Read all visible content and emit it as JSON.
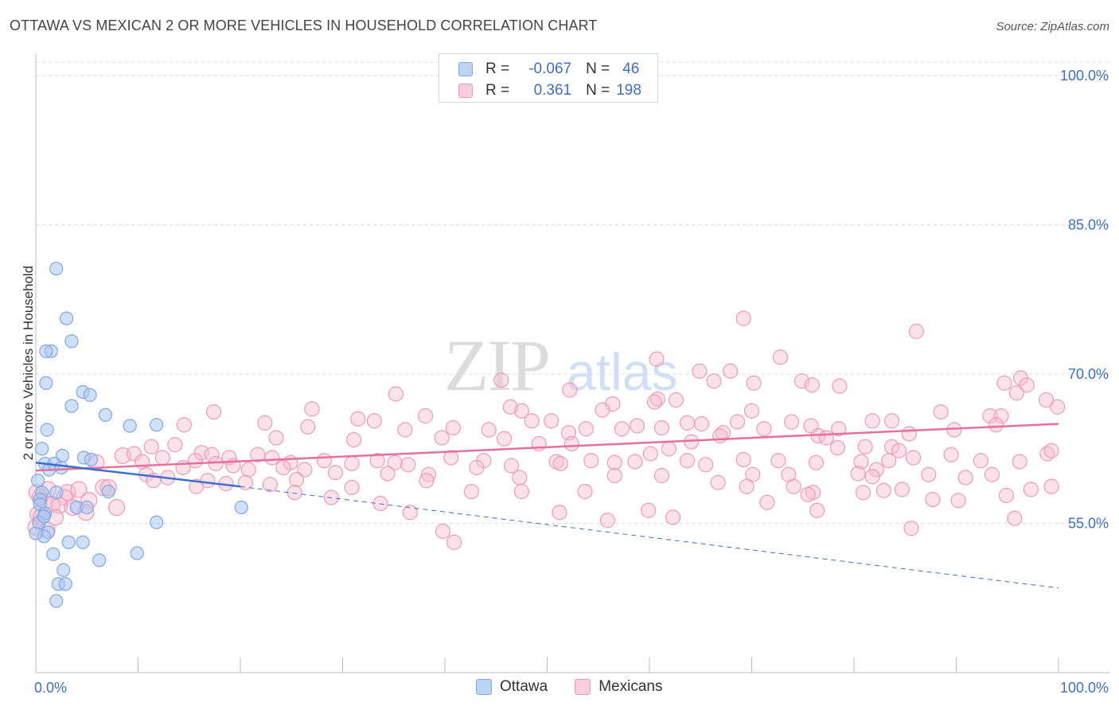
{
  "title": "OTTAWA VS MEXICAN 2 OR MORE VEHICLES IN HOUSEHOLD CORRELATION CHART",
  "source": "Source: ZipAtlas.com",
  "watermark": {
    "part1": "ZIP",
    "part2": "atlas"
  },
  "legend": {
    "rows": [
      {
        "r_label": "R =",
        "r_value": "-0.067",
        "n_label": "N =",
        "n_value": "46"
      },
      {
        "r_label": "R =",
        "r_value": "0.361",
        "n_label": "N =",
        "n_value": "198"
      }
    ]
  },
  "bottom_legend": {
    "ottawa": "Ottawa",
    "mexicans": "Mexicans"
  },
  "colors": {
    "ottawa_fill": "#a9c6f0",
    "ottawa_stroke": "#7ea8e6",
    "ottawa_line": "#3b6fd0",
    "mexican_fill": "#f6bcd0",
    "mexican_stroke": "#ee9ab7",
    "mexican_line": "#e5709b",
    "tick_label": "#3d6fc8",
    "grid": "#d9d9d9"
  },
  "chart_data": {
    "type": "scatter",
    "title": "OTTAWA VS MEXICAN 2 OR MORE VEHICLES IN HOUSEHOLD CORRELATION CHART",
    "xlabel": "",
    "ylabel": "2 or more Vehicles in Household",
    "xlim": [
      0,
      100
    ],
    "ylim": [
      40,
      102
    ],
    "x_tick_labels": [
      "0.0%",
      "100.0%"
    ],
    "y_ticks": [
      55,
      70,
      85,
      100
    ],
    "y_tick_labels": [
      "55.0%",
      "70.0%",
      "85.0%",
      "100.0%"
    ],
    "grid": "horizontal dashed",
    "legend_position": "top-center",
    "series": [
      {
        "name": "Ottawa",
        "r": -0.067,
        "n": 46,
        "trend": {
          "solid": [
            [
              0,
              61.1
            ],
            [
              20,
              58.7
            ]
          ],
          "dashed": [
            [
              20,
              58.7
            ],
            [
              100,
              48.5
            ]
          ]
        },
        "points": [
          [
            2,
            80.6
          ],
          [
            3,
            75.6
          ],
          [
            3.5,
            73.3
          ],
          [
            1.5,
            72.3
          ],
          [
            1,
            72.3
          ],
          [
            1,
            69.1
          ],
          [
            4.6,
            68.2
          ],
          [
            3.5,
            66.8
          ],
          [
            5.3,
            67.9
          ],
          [
            6.8,
            65.9
          ],
          [
            1.1,
            64.4
          ],
          [
            9.2,
            64.8
          ],
          [
            11.8,
            64.9
          ],
          [
            0.6,
            62.5
          ],
          [
            2.6,
            61.8
          ],
          [
            4.7,
            61.6
          ],
          [
            5.4,
            61.4
          ],
          [
            0.9,
            61.0
          ],
          [
            1.8,
            61.0
          ],
          [
            2.5,
            60.6
          ],
          [
            1.3,
            60.4
          ],
          [
            0.2,
            59.3
          ],
          [
            0.6,
            58.1
          ],
          [
            0.4,
            57.4
          ],
          [
            2,
            58.1
          ],
          [
            7.1,
            58.2
          ],
          [
            0.4,
            56.9
          ],
          [
            4,
            56.6
          ],
          [
            5,
            56.6
          ],
          [
            0.9,
            56.0
          ],
          [
            20.1,
            56.6
          ],
          [
            11.8,
            55.1
          ],
          [
            1.2,
            54.1
          ],
          [
            0.8,
            53.7
          ],
          [
            0,
            54.0
          ],
          [
            3.2,
            53.1
          ],
          [
            4.6,
            53.1
          ],
          [
            1.7,
            51.9
          ],
          [
            6.2,
            51.3
          ],
          [
            9.9,
            52.0
          ],
          [
            2.7,
            50.3
          ],
          [
            2.2,
            48.9
          ],
          [
            2.9,
            48.9
          ],
          [
            2,
            47.2
          ],
          [
            0.3,
            55.1
          ],
          [
            0.8,
            55.7
          ]
        ]
      },
      {
        "name": "Mexicans",
        "r": 0.361,
        "n": 198,
        "trend": {
          "solid": [
            [
              0,
              60.3
            ],
            [
              100,
              65.0
            ]
          ]
        },
        "points": [
          [
            69.2,
            75.6
          ],
          [
            86.1,
            74.3
          ],
          [
            60.7,
            71.5
          ],
          [
            72.8,
            71.7
          ],
          [
            64.9,
            70.3
          ],
          [
            67.9,
            70.3
          ],
          [
            45.5,
            69.4
          ],
          [
            66.3,
            69.3
          ],
          [
            70.2,
            69.1
          ],
          [
            74.9,
            69.3
          ],
          [
            75.9,
            68.9
          ],
          [
            78.6,
            68.8
          ],
          [
            94.7,
            69.1
          ],
          [
            96.3,
            69.6
          ],
          [
            96.9,
            68.9
          ],
          [
            99.9,
            66.7
          ],
          [
            95.9,
            68.1
          ],
          [
            52.2,
            68.4
          ],
          [
            35.2,
            68.0
          ],
          [
            60.8,
            67.5
          ],
          [
            60.5,
            67.2
          ],
          [
            56.4,
            67.0
          ],
          [
            62.6,
            67.4
          ],
          [
            98.8,
            67.4
          ],
          [
            27,
            66.5
          ],
          [
            17.4,
            66.2
          ],
          [
            38.1,
            65.8
          ],
          [
            47.5,
            66.3
          ],
          [
            46.4,
            66.7
          ],
          [
            55.4,
            66.4
          ],
          [
            48.5,
            65.3
          ],
          [
            50.4,
            65.3
          ],
          [
            53.8,
            64.5
          ],
          [
            57.3,
            64.5
          ],
          [
            70,
            66.3
          ],
          [
            68.6,
            65.2
          ],
          [
            73.9,
            65.2
          ],
          [
            81.8,
            65.3
          ],
          [
            88.5,
            66.2
          ],
          [
            93.3,
            65.8
          ],
          [
            94.4,
            65.8
          ],
          [
            93.9,
            64.9
          ],
          [
            83.7,
            65.3
          ],
          [
            75.8,
            64.8
          ],
          [
            63.7,
            65.1
          ],
          [
            22.4,
            65.1
          ],
          [
            14.5,
            64.9
          ],
          [
            26.6,
            64.7
          ],
          [
            31.5,
            65.5
          ],
          [
            33.1,
            65.3
          ],
          [
            36.1,
            64.4
          ],
          [
            40.8,
            64.6
          ],
          [
            44.3,
            64.4
          ],
          [
            52.1,
            64.1
          ],
          [
            58.8,
            64.8
          ],
          [
            61.2,
            64.6
          ],
          [
            65.1,
            65.0
          ],
          [
            67.2,
            64.1
          ],
          [
            71.2,
            64.5
          ],
          [
            76.5,
            63.8
          ],
          [
            78.5,
            64.5
          ],
          [
            77.3,
            63.6
          ],
          [
            85.4,
            64.0
          ],
          [
            89.8,
            64.4
          ],
          [
            23.5,
            63.6
          ],
          [
            31.1,
            63.4
          ],
          [
            39.7,
            63.6
          ],
          [
            45.8,
            63.5
          ],
          [
            49.2,
            63.0
          ],
          [
            52.4,
            63.0
          ],
          [
            61.9,
            62.5
          ],
          [
            64.1,
            63.2
          ],
          [
            66.9,
            63.8
          ],
          [
            78.4,
            62.6
          ],
          [
            81.1,
            62.7
          ],
          [
            83.7,
            62.7
          ],
          [
            84.4,
            62.3
          ],
          [
            11.3,
            62.7
          ],
          [
            13.6,
            62.9
          ],
          [
            16.2,
            62.1
          ],
          [
            17.2,
            61.9
          ],
          [
            18.9,
            61.6
          ],
          [
            21.7,
            61.9
          ],
          [
            23.1,
            61.6
          ],
          [
            24.9,
            61.1
          ],
          [
            28.2,
            61.3
          ],
          [
            30.9,
            61.0
          ],
          [
            33.4,
            61.3
          ],
          [
            35.1,
            61.1
          ],
          [
            36.4,
            60.9
          ],
          [
            40.6,
            61.6
          ],
          [
            43.8,
            61.3
          ],
          [
            46.5,
            60.8
          ],
          [
            50.9,
            61.2
          ],
          [
            51.3,
            61.0
          ],
          [
            54.3,
            61.3
          ],
          [
            56.6,
            61.1
          ],
          [
            58.6,
            61.2
          ],
          [
            60.1,
            62.0
          ],
          [
            63.7,
            61.3
          ],
          [
            65.5,
            60.9
          ],
          [
            69.2,
            61.4
          ],
          [
            72.6,
            61.3
          ],
          [
            76.3,
            61.1
          ],
          [
            80.7,
            61.2
          ],
          [
            82.2,
            60.4
          ],
          [
            83.4,
            61.3
          ],
          [
            85.8,
            61.6
          ],
          [
            89.5,
            61.9
          ],
          [
            92.4,
            61.3
          ],
          [
            96.2,
            61.2
          ],
          [
            98.9,
            62.0
          ],
          [
            99.3,
            62.3
          ],
          [
            8.5,
            61.8
          ],
          [
            9.6,
            62.0
          ],
          [
            12.4,
            61.6
          ],
          [
            15.6,
            61.3
          ],
          [
            5.9,
            61.1
          ],
          [
            10.4,
            61.2
          ],
          [
            14.4,
            60.6
          ],
          [
            17.6,
            61.0
          ],
          [
            19.3,
            60.8
          ],
          [
            20.8,
            60.4
          ],
          [
            24.2,
            60.6
          ],
          [
            26.3,
            60.4
          ],
          [
            29.3,
            60.1
          ],
          [
            34.4,
            60.0
          ],
          [
            38.4,
            59.9
          ],
          [
            43.1,
            60.6
          ],
          [
            47.3,
            59.6
          ],
          [
            56.6,
            59.8
          ],
          [
            61.2,
            59.8
          ],
          [
            70.1,
            59.9
          ],
          [
            73.6,
            59.9
          ],
          [
            80.4,
            60.0
          ],
          [
            81.8,
            59.7
          ],
          [
            87.3,
            59.9
          ],
          [
            90.9,
            59.6
          ],
          [
            93.5,
            59.9
          ],
          [
            10.8,
            59.9
          ],
          [
            12.9,
            59.6
          ],
          [
            11.5,
            59.3
          ],
          [
            16.8,
            59.3
          ],
          [
            20.5,
            59.1
          ],
          [
            22.9,
            58.9
          ],
          [
            25.5,
            59.4
          ],
          [
            38.2,
            59.3
          ],
          [
            42.6,
            58.2
          ],
          [
            47.5,
            58.2
          ],
          [
            53.7,
            58.2
          ],
          [
            66.7,
            59.1
          ],
          [
            69.5,
            58.7
          ],
          [
            74.1,
            58.7
          ],
          [
            76,
            58.1
          ],
          [
            80.9,
            58.1
          ],
          [
            84.7,
            58.4
          ],
          [
            97.3,
            58.4
          ],
          [
            99.3,
            58.7
          ],
          [
            15.7,
            58.7
          ],
          [
            18.6,
            59.0
          ],
          [
            6.6,
            58.6
          ],
          [
            3.1,
            58.1
          ],
          [
            4.2,
            58.4
          ],
          [
            5.2,
            57.3
          ],
          [
            7.1,
            58.6
          ],
          [
            1.2,
            58.4
          ],
          [
            2.8,
            57.6
          ],
          [
            0.1,
            58.1
          ],
          [
            0.8,
            57.1
          ],
          [
            1.6,
            56.9
          ],
          [
            0.4,
            57.6
          ],
          [
            2.3,
            56.8
          ],
          [
            3.6,
            56.6
          ],
          [
            4.9,
            56.1
          ],
          [
            7.9,
            56.6
          ],
          [
            0.2,
            55.9
          ],
          [
            1.9,
            55.6
          ],
          [
            0,
            54.6
          ],
          [
            1.1,
            54.3
          ],
          [
            0.5,
            55.6
          ],
          [
            25.3,
            58.1
          ],
          [
            30.9,
            58.6
          ],
          [
            36.6,
            56.1
          ],
          [
            33.7,
            57.0
          ],
          [
            75.5,
            57.9
          ],
          [
            82.9,
            58.3
          ],
          [
            87.7,
            57.4
          ],
          [
            90.2,
            57.3
          ],
          [
            94.9,
            57.8
          ],
          [
            39.8,
            54.2
          ],
          [
            55.9,
            55.3
          ],
          [
            76.4,
            56.3
          ],
          [
            85.6,
            54.5
          ],
          [
            95.7,
            55.5
          ],
          [
            51.2,
            56.1
          ],
          [
            59.9,
            56.3
          ],
          [
            62.3,
            55.6
          ],
          [
            28.9,
            57.6
          ],
          [
            40.9,
            53.1
          ],
          [
            71.5,
            57.1
          ]
        ]
      }
    ]
  }
}
